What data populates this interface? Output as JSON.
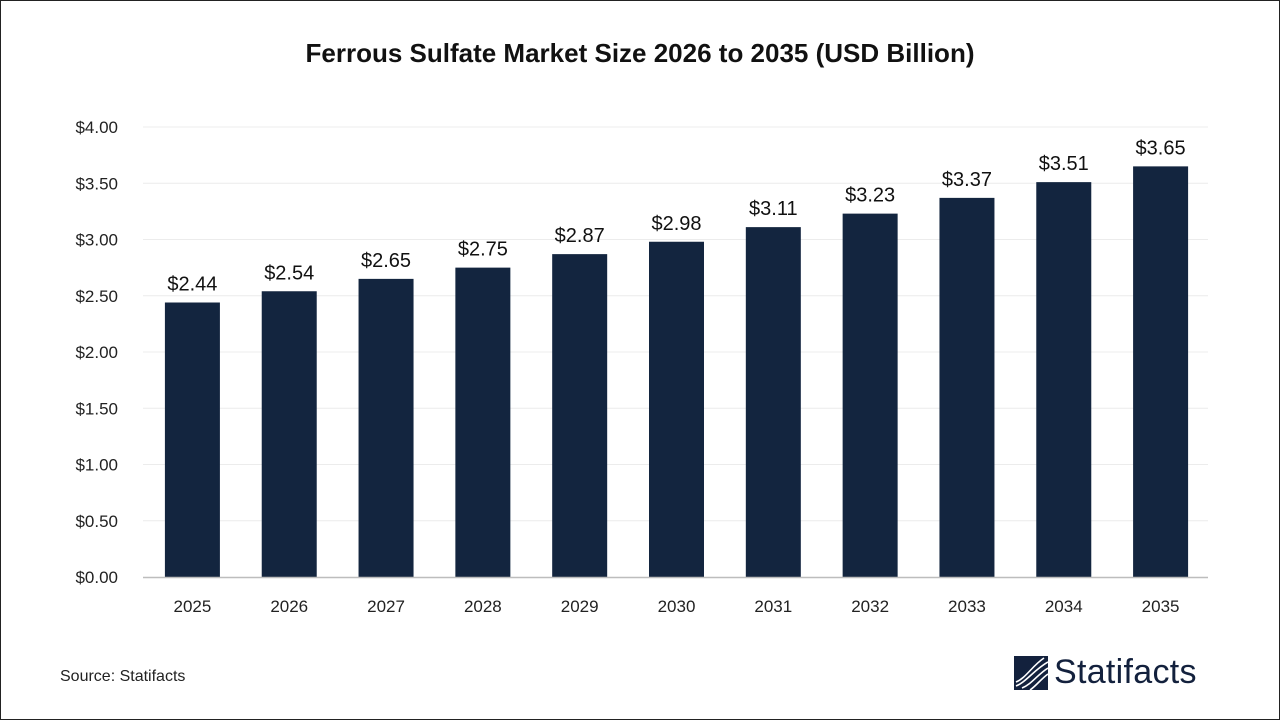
{
  "chart_data": {
    "type": "bar",
    "title": "Ferrous Sulfate Market Size 2026 to 2035 (USD Billion)",
    "categories": [
      "2025",
      "2026",
      "2027",
      "2028",
      "2029",
      "2030",
      "2031",
      "2032",
      "2033",
      "2034",
      "2035"
    ],
    "values": [
      2.44,
      2.54,
      2.65,
      2.75,
      2.87,
      2.98,
      3.11,
      3.23,
      3.37,
      3.51,
      3.65
    ],
    "data_labels": [
      "$2.44",
      "$2.54",
      "$2.65",
      "$2.75",
      "$2.87",
      "$2.98",
      "$3.11",
      "$3.23",
      "$3.37",
      "$3.51",
      "$3.65"
    ],
    "yticks": [
      "$0.00",
      "$0.50",
      "$1.00",
      "$1.50",
      "$2.00",
      "$2.50",
      "$3.00",
      "$3.50",
      "$4.00"
    ],
    "ylim": [
      0,
      4
    ],
    "xlabel": "",
    "ylabel": "",
    "grid": true,
    "bar_color": "#13253f"
  },
  "source": "Source: Statifacts",
  "logo": {
    "text": "Statifacts",
    "color": "#13213d"
  }
}
